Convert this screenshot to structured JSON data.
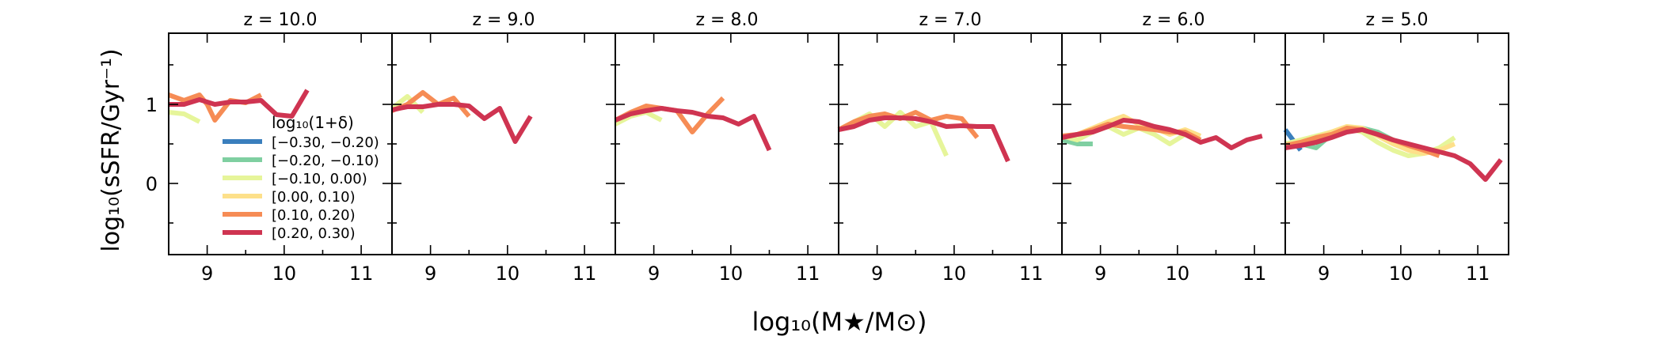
{
  "figure": {
    "xlabel": "log₁₀(M★/M⊙)",
    "ylabel": "log₁₀(sSFR/Gyr⁻¹)",
    "legend_title": "log₁₀(1+δ)"
  },
  "chart_data": {
    "type": "line",
    "xlim": [
      8.5,
      11.4
    ],
    "ylim": [
      -0.9,
      1.9
    ],
    "xticks": [
      9,
      10,
      11
    ],
    "xtick_labels": [
      "9",
      "10",
      "11"
    ],
    "yticks": [
      0,
      1
    ],
    "ytick_labels": [
      "0",
      "1"
    ],
    "grid": false,
    "legend_position": "lower-left of first panel",
    "series_meta": [
      {
        "name": "[−0.30, −0.20)",
        "color": "#3a7fbd"
      },
      {
        "name": "[−0.20, −0.10)",
        "color": "#7fcfa1"
      },
      {
        "name": "[−0.10, 0.00)",
        "color": "#e6f59a"
      },
      {
        "name": "[0.00, 0.10)",
        "color": "#fde08a"
      },
      {
        "name": "[0.10, 0.20)",
        "color": "#f68c55"
      },
      {
        "name": "[0.20, 0.30)",
        "color": "#cf3451"
      }
    ],
    "panels": [
      {
        "title": "z = 10.0",
        "series": [
          {
            "name": "[−0.10, 0.00)",
            "x": [
              8.5,
              8.7,
              8.9
            ],
            "y": [
              0.9,
              0.88,
              0.78
            ]
          },
          {
            "name": "[0.10, 0.20)",
            "x": [
              8.5,
              8.7,
              8.9,
              9.0,
              9.1,
              9.3,
              9.5,
              9.7
            ],
            "y": [
              1.12,
              1.05,
              1.12,
              1.0,
              0.8,
              1.05,
              1.02,
              1.12
            ]
          },
          {
            "name": "[0.20, 0.30)",
            "x": [
              8.5,
              8.7,
              8.9,
              9.1,
              9.3,
              9.5,
              9.7,
              9.9,
              10.1,
              10.3
            ],
            "y": [
              1.0,
              1.0,
              1.06,
              1.0,
              1.03,
              1.03,
              1.05,
              0.87,
              0.85,
              1.18
            ]
          }
        ]
      },
      {
        "title": "z = 9.0",
        "series": [
          {
            "name": "[−0.10, 0.00)",
            "x": [
              8.5,
              8.7,
              8.9
            ],
            "y": [
              0.95,
              1.1,
              0.9
            ]
          },
          {
            "name": "[0.10, 0.20)",
            "x": [
              8.5,
              8.7,
              8.9,
              9.1,
              9.3,
              9.5
            ],
            "y": [
              0.92,
              1.0,
              1.15,
              1.0,
              1.08,
              0.85
            ]
          },
          {
            "name": "[0.20, 0.30)",
            "x": [
              8.5,
              8.7,
              8.9,
              9.1,
              9.3,
              9.5,
              9.7,
              9.9,
              10.1,
              10.3
            ],
            "y": [
              0.93,
              0.97,
              0.97,
              1.0,
              1.0,
              0.98,
              0.82,
              0.95,
              0.53,
              0.85
            ]
          }
        ]
      },
      {
        "title": "z = 8.0",
        "series": [
          {
            "name": "[−0.10, 0.00)",
            "x": [
              8.5,
              8.7,
              8.9,
              9.1
            ],
            "y": [
              0.75,
              0.85,
              0.9,
              0.8
            ]
          },
          {
            "name": "[0.10, 0.20)",
            "x": [
              8.5,
              8.7,
              8.9,
              9.1,
              9.3,
              9.5,
              9.7,
              9.9
            ],
            "y": [
              0.8,
              0.9,
              0.98,
              0.95,
              0.92,
              0.65,
              0.88,
              1.08
            ]
          },
          {
            "name": "[0.20, 0.30)",
            "x": [
              8.5,
              8.7,
              8.9,
              9.1,
              9.3,
              9.5,
              9.7,
              9.9,
              10.1,
              10.3,
              10.5
            ],
            "y": [
              0.8,
              0.88,
              0.92,
              0.95,
              0.92,
              0.9,
              0.85,
              0.83,
              0.75,
              0.85,
              0.42
            ]
          }
        ]
      },
      {
        "title": "z = 7.0",
        "series": [
          {
            "name": "[−0.10, 0.00)",
            "x": [
              8.5,
              8.7,
              8.9,
              9.1,
              9.3,
              9.5,
              9.7,
              9.9
            ],
            "y": [
              0.68,
              0.78,
              0.88,
              0.72,
              0.9,
              0.72,
              0.78,
              0.35
            ]
          },
          {
            "name": "[0.10, 0.20)",
            "x": [
              8.5,
              8.7,
              8.9,
              9.1,
              9.3,
              9.5,
              9.7,
              9.9,
              10.1,
              10.3
            ],
            "y": [
              0.68,
              0.78,
              0.85,
              0.88,
              0.82,
              0.9,
              0.8,
              0.85,
              0.82,
              0.58
            ]
          },
          {
            "name": "[0.20, 0.30)",
            "x": [
              8.5,
              8.7,
              8.9,
              9.1,
              9.3,
              9.5,
              9.7,
              9.9,
              10.1,
              10.3,
              10.5,
              10.7
            ],
            "y": [
              0.68,
              0.72,
              0.8,
              0.83,
              0.83,
              0.82,
              0.78,
              0.72,
              0.73,
              0.72,
              0.72,
              0.28
            ]
          }
        ]
      },
      {
        "title": "z = 6.0",
        "series": [
          {
            "name": "[−0.20, −0.10)",
            "x": [
              8.5,
              8.7,
              8.9
            ],
            "y": [
              0.55,
              0.5,
              0.5
            ]
          },
          {
            "name": "[−0.10, 0.00)",
            "x": [
              8.5,
              8.7,
              8.9,
              9.1,
              9.3,
              9.5,
              9.7,
              9.9,
              10.1
            ],
            "y": [
              0.6,
              0.55,
              0.65,
              0.72,
              0.62,
              0.7,
              0.62,
              0.5,
              0.62
            ]
          },
          {
            "name": "[0.00, 0.10)",
            "x": [
              8.5,
              8.7,
              8.9,
              9.1,
              9.3,
              9.5,
              9.7,
              9.9,
              10.1,
              10.3
            ],
            "y": [
              0.58,
              0.62,
              0.7,
              0.78,
              0.85,
              0.75,
              0.7,
              0.62,
              0.68,
              0.6
            ]
          },
          {
            "name": "[0.10, 0.20)",
            "x": [
              8.5,
              8.7,
              8.9,
              9.1,
              9.3,
              9.5,
              9.7,
              9.9,
              10.1,
              10.3
            ],
            "y": [
              0.6,
              0.62,
              0.68,
              0.75,
              0.72,
              0.7,
              0.68,
              0.65,
              0.65,
              0.55
            ]
          },
          {
            "name": "[0.20, 0.30)",
            "x": [
              8.5,
              8.7,
              8.9,
              9.1,
              9.3,
              9.5,
              9.7,
              9.9,
              10.1,
              10.3,
              10.5,
              10.7,
              10.9,
              11.1
            ],
            "y": [
              0.58,
              0.62,
              0.65,
              0.72,
              0.8,
              0.78,
              0.72,
              0.68,
              0.62,
              0.52,
              0.58,
              0.45,
              0.55,
              0.6
            ]
          }
        ]
      },
      {
        "title": "z = 5.0",
        "series": [
          {
            "name": "[−0.30, −0.20)",
            "x": [
              8.5,
              8.6,
              8.7
            ],
            "y": [
              0.68,
              0.55,
              0.42
            ]
          },
          {
            "name": "[−0.20, −0.10)",
            "x": [
              8.5,
              8.7,
              8.9,
              9.1,
              9.3,
              9.5,
              9.7,
              9.9
            ],
            "y": [
              0.45,
              0.5,
              0.45,
              0.62,
              0.68,
              0.7,
              0.65,
              0.55
            ]
          },
          {
            "name": "[−0.10, 0.00)",
            "x": [
              8.5,
              8.7,
              8.9,
              9.1,
              9.3,
              9.5,
              9.7,
              9.9,
              10.1,
              10.3,
              10.5,
              10.7
            ],
            "y": [
              0.5,
              0.55,
              0.6,
              0.65,
              0.7,
              0.65,
              0.52,
              0.42,
              0.35,
              0.38,
              0.45,
              0.58
            ]
          },
          {
            "name": "[0.00, 0.10)",
            "x": [
              8.5,
              8.7,
              8.9,
              9.1,
              9.3,
              9.5,
              9.7,
              9.9,
              10.1,
              10.3,
              10.5,
              10.7
            ],
            "y": [
              0.48,
              0.52,
              0.58,
              0.65,
              0.72,
              0.7,
              0.6,
              0.5,
              0.42,
              0.38,
              0.42,
              0.5
            ]
          },
          {
            "name": "[0.10, 0.20)",
            "x": [
              8.5,
              8.7,
              8.9,
              9.1,
              9.3,
              9.5,
              9.7,
              9.9,
              10.1,
              10.3,
              10.5
            ],
            "y": [
              0.48,
              0.52,
              0.58,
              0.62,
              0.7,
              0.68,
              0.62,
              0.55,
              0.48,
              0.42,
              0.35
            ]
          },
          {
            "name": "[0.20, 0.30)",
            "x": [
              8.5,
              8.7,
              8.9,
              9.1,
              9.3,
              9.5,
              9.7,
              9.9,
              10.1,
              10.3,
              10.5,
              10.7,
              10.9,
              11.1,
              11.3
            ],
            "y": [
              0.45,
              0.48,
              0.52,
              0.58,
              0.65,
              0.68,
              0.62,
              0.55,
              0.5,
              0.45,
              0.4,
              0.35,
              0.25,
              0.05,
              0.3
            ]
          }
        ]
      }
    ]
  }
}
